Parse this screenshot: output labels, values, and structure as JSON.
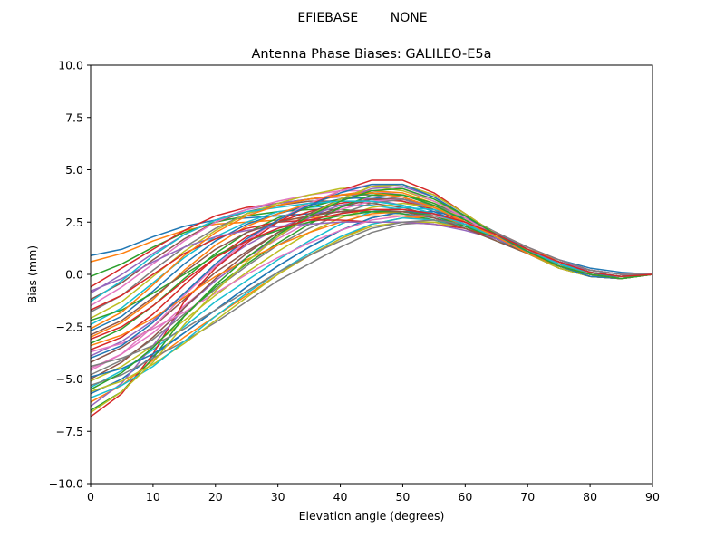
{
  "chart_data": {
    "type": "line",
    "suptitle": "EFIEBASE        NONE",
    "title": "Antenna Phase Biases: GALILEO-E5a",
    "xlabel": "Elevation angle (degrees)",
    "ylabel": "Bias (mm)",
    "xlim": [
      0,
      90
    ],
    "ylim": [
      -10,
      10
    ],
    "xticks": [
      0,
      10,
      20,
      30,
      40,
      50,
      60,
      70,
      80,
      90
    ],
    "xtick_labels": [
      "0",
      "10",
      "20",
      "30",
      "40",
      "50",
      "60",
      "70",
      "80",
      "90"
    ],
    "yticks": [
      -10,
      -7.5,
      -5,
      -2.5,
      0,
      2.5,
      5,
      7.5,
      10
    ],
    "ytick_labels": [
      "−10.0",
      "−7.5",
      "−5.0",
      "−2.5",
      "0.0",
      "2.5",
      "5.0",
      "7.5",
      "10.0"
    ],
    "grid": false,
    "legend": "none",
    "palette": [
      "#1f77b4",
      "#ff7f0e",
      "#2ca02c",
      "#d62728",
      "#9467bd",
      "#8c564b",
      "#e377c2",
      "#7f7f7f",
      "#bcbd22",
      "#17becf"
    ],
    "x": [
      0,
      5,
      10,
      15,
      20,
      25,
      30,
      35,
      40,
      45,
      50,
      55,
      60,
      65,
      70,
      75,
      80,
      85,
      90
    ],
    "series": [
      {
        "values": [
          0.9,
          1.2,
          1.8,
          2.3,
          2.6,
          2.7,
          2.8,
          2.9,
          3.0,
          3.0,
          2.9,
          2.7,
          2.3,
          1.8,
          1.2,
          0.7,
          0.3,
          0.1,
          0.0
        ]
      },
      {
        "values": [
          0.6,
          1.0,
          1.6,
          2.1,
          2.4,
          2.5,
          2.6,
          2.7,
          2.8,
          2.8,
          2.8,
          2.6,
          2.2,
          1.7,
          1.1,
          0.6,
          0.2,
          0.0,
          0.0
        ]
      },
      {
        "values": [
          -0.1,
          0.5,
          1.3,
          2.0,
          2.5,
          2.8,
          3.0,
          3.1,
          3.1,
          3.0,
          2.9,
          2.6,
          2.2,
          1.6,
          1.0,
          0.5,
          0.1,
          -0.1,
          0.0
        ]
      },
      {
        "values": [
          -0.6,
          0.3,
          1.2,
          2.1,
          2.8,
          3.2,
          3.4,
          3.6,
          3.8,
          3.9,
          3.7,
          3.2,
          2.5,
          1.8,
          1.1,
          0.5,
          0.1,
          -0.1,
          0.0
        ]
      },
      {
        "values": [
          -0.9,
          0.0,
          1.0,
          1.9,
          2.6,
          3.1,
          3.4,
          3.6,
          3.7,
          3.6,
          3.3,
          2.9,
          2.4,
          1.7,
          1.0,
          0.4,
          0.0,
          -0.2,
          0.0
        ]
      },
      {
        "values": [
          -1.2,
          -0.4,
          0.7,
          1.7,
          2.5,
          3.0,
          3.3,
          3.5,
          3.5,
          3.4,
          3.2,
          2.8,
          2.3,
          1.7,
          1.0,
          0.4,
          0.0,
          -0.2,
          0.0
        ]
      },
      {
        "values": [
          -1.5,
          -0.6,
          0.5,
          1.6,
          2.5,
          3.1,
          3.5,
          3.8,
          4.0,
          4.0,
          3.8,
          3.3,
          2.6,
          1.8,
          1.0,
          0.4,
          -0.1,
          -0.2,
          0.0
        ]
      },
      {
        "values": [
          -1.8,
          -1.0,
          0.2,
          1.3,
          2.2,
          2.9,
          3.3,
          3.6,
          3.8,
          3.8,
          3.6,
          3.1,
          2.5,
          1.8,
          1.1,
          0.5,
          0.0,
          -0.1,
          0.0
        ]
      },
      {
        "values": [
          -2.1,
          -1.3,
          -0.1,
          1.1,
          2.1,
          2.9,
          3.4,
          3.8,
          4.1,
          4.2,
          4.0,
          3.5,
          2.8,
          1.9,
          1.1,
          0.4,
          -0.1,
          -0.2,
          0.0
        ]
      },
      {
        "values": [
          -2.4,
          -1.6,
          -0.4,
          0.8,
          1.8,
          2.5,
          3.0,
          3.2,
          3.3,
          3.3,
          3.1,
          2.8,
          2.3,
          1.7,
          1.0,
          0.5,
          0.1,
          -0.1,
          0.0
        ]
      },
      {
        "values": [
          -2.7,
          -2.0,
          -0.8,
          0.5,
          1.6,
          2.4,
          2.9,
          3.3,
          3.6,
          3.7,
          3.5,
          3.0,
          2.4,
          1.7,
          1.0,
          0.4,
          0.0,
          -0.2,
          0.0
        ]
      },
      {
        "values": [
          -3.0,
          -2.3,
          -1.2,
          0.2,
          1.4,
          2.3,
          2.9,
          3.4,
          3.8,
          4.0,
          3.9,
          3.4,
          2.7,
          1.9,
          1.1,
          0.4,
          -0.1,
          -0.2,
          0.0
        ]
      },
      {
        "values": [
          -3.3,
          -2.6,
          -1.5,
          -0.2,
          1.0,
          2.0,
          2.7,
          3.2,
          3.6,
          3.9,
          3.8,
          3.4,
          2.7,
          1.9,
          1.1,
          0.4,
          -0.1,
          -0.2,
          0.0
        ]
      },
      {
        "values": [
          -3.6,
          -3.0,
          -1.9,
          -0.5,
          0.8,
          1.8,
          2.5,
          3.0,
          3.4,
          3.6,
          3.5,
          3.1,
          2.5,
          1.8,
          1.1,
          0.5,
          0.0,
          -0.1,
          0.0
        ]
      },
      {
        "values": [
          -3.9,
          -3.2,
          -2.2,
          -0.9,
          0.4,
          1.4,
          2.2,
          2.8,
          3.3,
          3.6,
          3.6,
          3.2,
          2.6,
          1.9,
          1.1,
          0.5,
          0.0,
          -0.2,
          0.0
        ]
      },
      {
        "values": [
          -4.2,
          -3.5,
          -2.5,
          -1.2,
          0.1,
          1.1,
          2.0,
          2.7,
          3.2,
          3.6,
          3.6,
          3.3,
          2.7,
          1.9,
          1.1,
          0.5,
          0.0,
          -0.2,
          0.0
        ]
      },
      {
        "values": [
          -4.5,
          -3.8,
          -2.8,
          -1.5,
          -0.3,
          0.8,
          1.7,
          2.5,
          3.1,
          3.5,
          3.6,
          3.3,
          2.7,
          1.9,
          1.1,
          0.4,
          -0.1,
          -0.2,
          0.0
        ]
      },
      {
        "values": [
          -4.8,
          -4.1,
          -3.1,
          -1.9,
          -0.7,
          0.4,
          1.4,
          2.2,
          2.9,
          3.4,
          3.6,
          3.3,
          2.8,
          2.0,
          1.2,
          0.5,
          0.0,
          -0.2,
          0.0
        ]
      },
      {
        "values": [
          -5.1,
          -4.4,
          -3.4,
          -2.2,
          -1.0,
          0.1,
          1.1,
          2.0,
          2.7,
          3.2,
          3.4,
          3.2,
          2.7,
          2.0,
          1.2,
          0.5,
          0.0,
          -0.2,
          0.0
        ]
      },
      {
        "values": [
          -5.4,
          -4.6,
          -3.6,
          -2.5,
          -1.3,
          -0.3,
          0.7,
          1.6,
          2.4,
          3.0,
          3.2,
          3.1,
          2.7,
          2.0,
          1.2,
          0.5,
          0.0,
          -0.2,
          0.0
        ]
      },
      {
        "values": [
          -5.7,
          -5.0,
          -3.9,
          -2.8,
          -1.7,
          -0.6,
          0.4,
          1.3,
          2.1,
          2.7,
          3.0,
          3.0,
          2.7,
          2.0,
          1.2,
          0.6,
          0.1,
          -0.2,
          0.0
        ]
      },
      {
        "values": [
          -6.1,
          -5.3,
          -4.1,
          -3.0,
          -2.0,
          -1.0,
          0.0,
          0.9,
          1.7,
          2.4,
          2.7,
          2.8,
          2.6,
          2.0,
          1.3,
          0.6,
          0.1,
          -0.1,
          0.0
        ]
      },
      {
        "values": [
          -6.5,
          -5.6,
          -4.0,
          -2.0,
          -0.6,
          0.5,
          1.5,
          2.4,
          3.2,
          3.8,
          3.8,
          3.3,
          2.6,
          1.8,
          1.0,
          0.4,
          0.0,
          -0.2,
          0.0
        ]
      },
      {
        "values": [
          -6.8,
          -5.7,
          -3.8,
          -1.3,
          0.3,
          1.5,
          2.5,
          3.3,
          4.0,
          4.5,
          4.5,
          3.9,
          2.9,
          1.9,
          1.0,
          0.3,
          -0.1,
          -0.2,
          0.0
        ]
      },
      {
        "values": [
          -6.3,
          -5.2,
          -3.4,
          -1.6,
          -0.3,
          0.8,
          1.8,
          2.7,
          3.5,
          4.1,
          4.2,
          3.7,
          2.8,
          1.9,
          1.0,
          0.4,
          0.0,
          -0.2,
          0.0
        ]
      },
      {
        "values": [
          -5.0,
          -4.2,
          -3.0,
          -1.6,
          -0.2,
          1.0,
          2.0,
          2.9,
          3.6,
          4.2,
          4.3,
          3.8,
          2.9,
          1.9,
          1.0,
          0.3,
          -0.1,
          -0.2,
          0.0
        ]
      },
      {
        "values": [
          -4.6,
          -3.8,
          -2.5,
          -1.0,
          0.4,
          1.6,
          2.6,
          3.4,
          4.0,
          4.3,
          4.1,
          3.5,
          2.7,
          1.8,
          1.0,
          0.4,
          0.0,
          -0.2,
          0.0
        ]
      },
      {
        "values": [
          -5.3,
          -4.8,
          -4.0,
          -3.2,
          -2.3,
          -1.3,
          -0.3,
          0.5,
          1.3,
          2.0,
          2.4,
          2.5,
          2.3,
          1.8,
          1.2,
          0.6,
          0.2,
          0.0,
          0.0
        ]
      },
      {
        "values": [
          -5.6,
          -5.1,
          -4.3,
          -3.3,
          -2.2,
          -1.1,
          0.0,
          0.9,
          1.7,
          2.3,
          2.5,
          2.5,
          2.2,
          1.7,
          1.1,
          0.6,
          0.2,
          0.0,
          0.0
        ]
      },
      {
        "values": [
          -5.9,
          -5.3,
          -4.4,
          -3.2,
          -2.0,
          -0.9,
          0.1,
          1.0,
          1.8,
          2.4,
          2.7,
          2.6,
          2.3,
          1.8,
          1.1,
          0.6,
          0.2,
          0.0,
          0.0
        ]
      },
      {
        "values": [
          -4.9,
          -4.5,
          -3.8,
          -2.8,
          -1.7,
          -0.6,
          0.4,
          1.3,
          2.1,
          2.7,
          3.0,
          2.9,
          2.5,
          1.9,
          1.2,
          0.6,
          0.1,
          -0.1,
          0.0
        ]
      },
      {
        "values": [
          -3.4,
          -2.9,
          -2.1,
          -1.1,
          -0.1,
          0.7,
          1.4,
          2.0,
          2.5,
          2.9,
          3.0,
          2.8,
          2.4,
          1.8,
          1.2,
          0.6,
          0.2,
          0.0,
          0.0
        ]
      },
      {
        "values": [
          -2.2,
          -1.7,
          -0.9,
          0.0,
          0.9,
          1.6,
          2.1,
          2.5,
          2.8,
          3.0,
          3.0,
          2.8,
          2.3,
          1.7,
          1.1,
          0.6,
          0.2,
          0.0,
          0.0
        ]
      },
      {
        "values": [
          -1.7,
          -1.0,
          0.0,
          1.0,
          1.7,
          2.2,
          2.5,
          2.6,
          2.6,
          2.5,
          2.5,
          2.4,
          2.2,
          1.7,
          1.1,
          0.6,
          0.2,
          0.0,
          0.0
        ]
      },
      {
        "values": [
          -0.8,
          -0.2,
          0.6,
          1.3,
          1.8,
          2.1,
          2.3,
          2.4,
          2.5,
          2.5,
          2.5,
          2.4,
          2.1,
          1.7,
          1.1,
          0.6,
          0.2,
          0.0,
          0.0
        ]
      },
      {
        "values": [
          -2.9,
          -2.2,
          -1.1,
          0.1,
          1.2,
          2.0,
          2.5,
          2.8,
          3.0,
          3.1,
          3.0,
          2.7,
          2.2,
          1.6,
          1.0,
          0.5,
          0.1,
          -0.1,
          0.0
        ]
      },
      {
        "values": [
          -3.7,
          -3.3,
          -2.6,
          -1.8,
          -0.9,
          0.0,
          0.8,
          1.5,
          2.1,
          2.6,
          2.8,
          2.8,
          2.5,
          2.0,
          1.3,
          0.7,
          0.2,
          0.0,
          0.0
        ]
      },
      {
        "values": [
          -4.4,
          -4.0,
          -3.4,
          -2.6,
          -1.7,
          -0.8,
          0.1,
          0.9,
          1.6,
          2.2,
          2.5,
          2.6,
          2.4,
          2.0,
          1.3,
          0.7,
          0.2,
          0.0,
          0.0
        ]
      },
      {
        "values": [
          -6.6,
          -5.6,
          -4.2,
          -2.4,
          -0.8,
          0.6,
          1.8,
          2.8,
          3.6,
          4.2,
          4.3,
          3.8,
          2.9,
          1.9,
          1.0,
          0.3,
          -0.1,
          -0.2,
          0.0
        ]
      },
      {
        "values": [
          -1.3,
          -0.3,
          0.9,
          1.9,
          2.6,
          3.0,
          3.2,
          3.4,
          3.5,
          3.5,
          3.3,
          2.9,
          2.4,
          1.8,
          1.1,
          0.5,
          0.1,
          -0.1,
          0.0
        ]
      },
      {
        "values": [
          -4.0,
          -3.4,
          -2.3,
          -0.9,
          0.5,
          1.7,
          2.6,
          3.3,
          3.9,
          4.3,
          4.3,
          3.7,
          2.8,
          1.9,
          1.0,
          0.4,
          -0.1,
          -0.2,
          0.0
        ]
      },
      {
        "values": [
          -2.6,
          -1.8,
          -0.5,
          0.9,
          2.0,
          2.8,
          3.3,
          3.6,
          3.8,
          3.9,
          3.7,
          3.2,
          2.5,
          1.8,
          1.0,
          0.4,
          0.0,
          -0.2,
          0.0
        ]
      },
      {
        "values": [
          -5.5,
          -4.7,
          -3.5,
          -2.0,
          -0.5,
          0.8,
          1.9,
          2.8,
          3.5,
          4.0,
          4.1,
          3.6,
          2.8,
          1.9,
          1.1,
          0.4,
          0.0,
          -0.2,
          0.0
        ]
      },
      {
        "values": [
          -3.1,
          -2.5,
          -1.5,
          -0.3,
          0.8,
          1.6,
          2.2,
          2.6,
          2.9,
          3.1,
          3.1,
          2.9,
          2.5,
          1.9,
          1.2,
          0.6,
          0.1,
          -0.1,
          0.0
        ]
      }
    ]
  }
}
